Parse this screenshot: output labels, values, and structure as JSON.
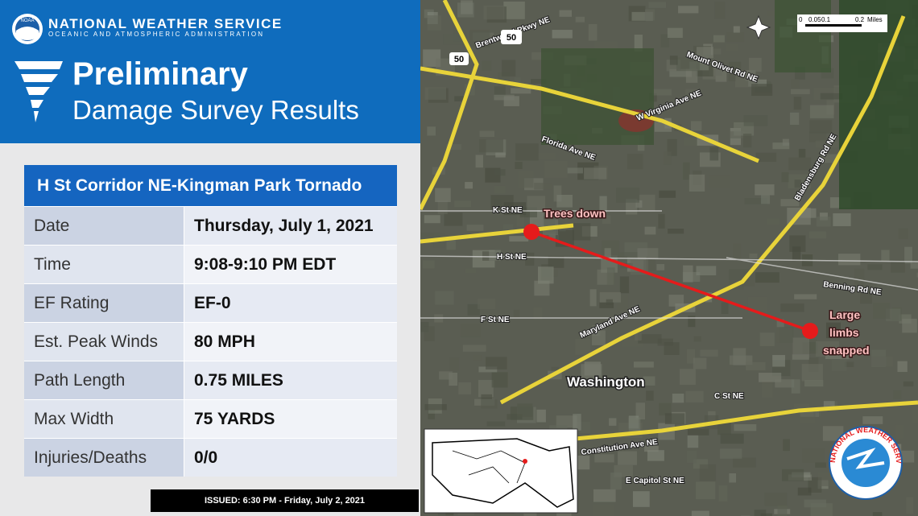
{
  "header": {
    "org_name": "NATIONAL WEATHER SERVICE",
    "org_sub": "OCEANIC AND ATMOSPHERIC ADMINISTRATION",
    "logo_text": "NOAA",
    "title_line1": "Preliminary",
    "title_line2": "Damage Survey Results"
  },
  "table": {
    "title": "H St Corridor NE-Kingman Park Tornado",
    "rows": [
      [
        "Date",
        "Thursday, July 1, 2021"
      ],
      [
        "Time",
        "9:08-9:10 PM EDT"
      ],
      [
        "EF Rating",
        "EF-0"
      ],
      [
        "Est. Peak Winds",
        "80 MPH"
      ],
      [
        "Path Length",
        "0.75 MILES"
      ],
      [
        "Max Width",
        "75 YARDS"
      ],
      [
        "Injuries/Deaths",
        "0/0"
      ]
    ]
  },
  "footer": {
    "issued": "ISSUED: 6:30 PM - Friday, July 2, 2021"
  },
  "map": {
    "annotations": [
      "Trees down",
      "Large",
      "limbs",
      "snapped"
    ],
    "place": "Washington",
    "scale": [
      "0",
      "0.05",
      "0.1",
      "0.2",
      "Miles"
    ],
    "route": "50",
    "streets": [
      "K St NE",
      "H St NE",
      "F St NE",
      "C St NE",
      "Florida Ave NE",
      "Maryland Ave NE",
      "Benning Rd NE",
      "Bladensburg Rd NE",
      "Mount Olivet Rd NE",
      "Brentwood Pkwy NE",
      "W Virginia Ave NE",
      "Constitution Ave NE",
      "E Capitol St NE"
    ],
    "logo_ring": "NATIONAL WEATHER SERVICE"
  }
}
